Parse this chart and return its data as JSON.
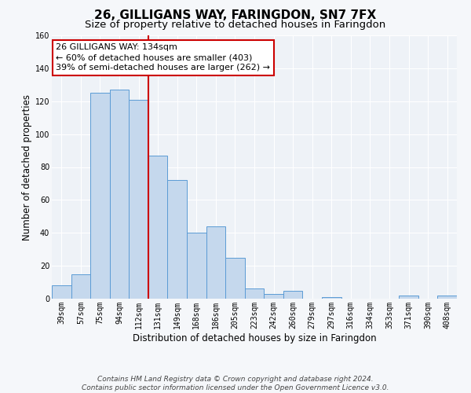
{
  "title": "26, GILLIGANS WAY, FARINGDON, SN7 7FX",
  "subtitle": "Size of property relative to detached houses in Faringdon",
  "xlabel": "Distribution of detached houses by size in Faringdon",
  "ylabel": "Number of detached properties",
  "bar_labels": [
    "39sqm",
    "57sqm",
    "75sqm",
    "94sqm",
    "112sqm",
    "131sqm",
    "149sqm",
    "168sqm",
    "186sqm",
    "205sqm",
    "223sqm",
    "242sqm",
    "260sqm",
    "279sqm",
    "297sqm",
    "316sqm",
    "334sqm",
    "353sqm",
    "371sqm",
    "390sqm",
    "408sqm"
  ],
  "bar_values": [
    8,
    15,
    125,
    127,
    121,
    87,
    72,
    40,
    44,
    25,
    6,
    3,
    5,
    0,
    1,
    0,
    0,
    0,
    2,
    0,
    2
  ],
  "bar_color": "#c5d8ed",
  "bar_edge_color": "#5b9bd5",
  "redline_x": 4.5,
  "ylim": [
    0,
    160
  ],
  "yticks": [
    0,
    20,
    40,
    60,
    80,
    100,
    120,
    140,
    160
  ],
  "annotation_title": "26 GILLIGANS WAY: 134sqm",
  "annotation_line1": "← 60% of detached houses are smaller (403)",
  "annotation_line2": "39% of semi-detached houses are larger (262) →",
  "annotation_box_color": "#ffffff",
  "annotation_box_edge": "#cc0000",
  "footer_line1": "Contains HM Land Registry data © Crown copyright and database right 2024.",
  "footer_line2": "Contains public sector information licensed under the Open Government Licence v3.0.",
  "plot_bg_color": "#eef2f7",
  "fig_bg_color": "#f5f7fa",
  "grid_color": "#ffffff",
  "title_fontsize": 11,
  "subtitle_fontsize": 9.5,
  "axis_label_fontsize": 8.5,
  "tick_fontsize": 7,
  "footer_fontsize": 6.5,
  "annot_fontsize": 8
}
